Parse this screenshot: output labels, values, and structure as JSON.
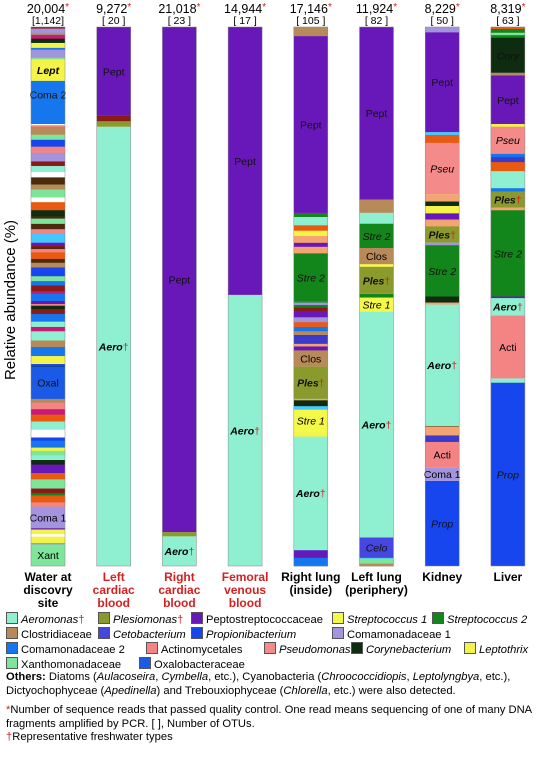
{
  "chart_data": {
    "type": "stacked-bar",
    "ylabel": "Relative abundance (%)",
    "ylim": [
      0,
      100
    ],
    "columns": [
      {
        "reads": "20,004",
        "otus": "[1,142]",
        "label": [
          "Water at",
          "discovry",
          "site"
        ],
        "label_color": "#000000"
      },
      {
        "reads": "9,272",
        "otus": "[ 20 ]",
        "label": [
          "Left",
          "cardiac",
          "blood"
        ],
        "label_color": "#d42020"
      },
      {
        "reads": "21,018",
        "otus": "[ 23 ]",
        "label": [
          "Right",
          "cardiac",
          "blood"
        ],
        "label_color": "#d42020"
      },
      {
        "reads": "14,944",
        "otus": "[ 17 ]",
        "label": [
          "Femoral",
          "venous",
          "blood"
        ],
        "label_color": "#d42020"
      },
      {
        "reads": "17,146",
        "otus": "[ 105 ]",
        "label": [
          "Right lung",
          "(inside)"
        ],
        "label_color": "#000000"
      },
      {
        "reads": "11,924",
        "otus": "[ 82 ]",
        "label": [
          "Left lung",
          "(periphery)"
        ],
        "label_color": "#000000"
      },
      {
        "reads": "8,229",
        "otus": "[ 50 ]",
        "label": [
          "Kidney"
        ],
        "label_color": "#000000"
      },
      {
        "reads": "8,319",
        "otus": "[ 63 ]",
        "label": [
          "Liver"
        ],
        "label_color": "#000000"
      }
    ],
    "segments": [
      [
        {
          "taxon": "Xanthomonadaceae",
          "from": 0,
          "to": 4,
          "label": "Xant",
          "style": "normal"
        },
        {
          "taxon": "Comamonadaceae 1",
          "from": 7,
          "to": 11,
          "label": "Coma 1",
          "style": "normal"
        },
        {
          "taxon": "Oxalobacteraceae",
          "from": 31,
          "to": 37,
          "label": "Oxal",
          "style": "normal"
        },
        {
          "taxon": "Comamonadaceae 2",
          "from": 82,
          "to": 93,
          "label": "Coma 2",
          "style": "normal"
        },
        {
          "taxon": "Leptothrix",
          "from": 90,
          "to": 94,
          "label": "Lept",
          "style": "italic-bold"
        }
      ],
      [
        {
          "taxon": "Aeromonas",
          "from": 0,
          "to": 81.5,
          "label": "Aero",
          "style": "aero"
        },
        {
          "taxon": "Plesiomonas",
          "from": 81.5,
          "to": 82.5,
          "label": "",
          "style": "normal"
        },
        {
          "taxon": "Other",
          "from": 82.5,
          "to": 83.5,
          "label": "",
          "style": "normal"
        },
        {
          "taxon": "Peptostreptococcaceae",
          "from": 83.5,
          "to": 100,
          "label": "Pept",
          "style": "normal"
        }
      ],
      [
        {
          "taxon": "Aeromonas",
          "from": 0,
          "to": 5.5,
          "label": "Aero",
          "style": "aero"
        },
        {
          "taxon": "Plesiomonas",
          "from": 5.5,
          "to": 6.3,
          "label": "",
          "style": "normal"
        },
        {
          "taxon": "Peptostreptococcaceae",
          "from": 6.3,
          "to": 100,
          "label": "Pept",
          "style": "normal"
        }
      ],
      [
        {
          "taxon": "Aeromonas",
          "from": 0,
          "to": 50.3,
          "label": "Aero",
          "style": "aero"
        },
        {
          "taxon": "Peptostreptococcaceae",
          "from": 50.3,
          "to": 100,
          "label": "Pept",
          "style": "normal"
        }
      ],
      [
        {
          "taxon": "Aeromonas",
          "from": 3,
          "to": 24,
          "label": "Aero",
          "style": "aero"
        },
        {
          "taxon": "Streptococcus 1",
          "from": 25,
          "to": 29,
          "label": "Stre 1",
          "style": "italic"
        },
        {
          "taxon": "Plesiomonas",
          "from": 31,
          "to": 37,
          "label": "Ples",
          "style": "ples"
        },
        {
          "taxon": "Clostridiaceae",
          "from": 37,
          "to": 40,
          "label": "Clos",
          "style": "normal"
        },
        {
          "taxon": "Streptococcus 2",
          "from": 49,
          "to": 58,
          "label": "Stre 2",
          "style": "italic"
        },
        {
          "taxon": "Peptostreptococcaceae",
          "from": 65.5,
          "to": 98.3,
          "label": "Pept",
          "style": "normal"
        }
      ],
      [
        {
          "taxon": "Cetobacterium",
          "from": 1.5,
          "to": 5.3,
          "label": "Celo",
          "style": "italic"
        },
        {
          "taxon": "Aeromonas",
          "from": 5.3,
          "to": 47.2,
          "label": "Aero",
          "style": "aero"
        },
        {
          "taxon": "Streptococcus 1",
          "from": 47.2,
          "to": 49.8,
          "label": "Stre 1",
          "style": "italic"
        },
        {
          "taxon": "Plesiomonas",
          "from": 50.5,
          "to": 55.5,
          "label": "Ples",
          "style": "ples"
        },
        {
          "taxon": "Clostridiaceae",
          "from": 56,
          "to": 59,
          "label": "Clos",
          "style": "normal"
        },
        {
          "taxon": "Streptococcus 2",
          "from": 59,
          "to": 63.5,
          "label": "Stre 2",
          "style": "italic"
        },
        {
          "taxon": "Peptostreptococcaceae",
          "from": 68,
          "to": 100,
          "label": "Pept",
          "style": "normal"
        }
      ],
      [
        {
          "taxon": "Propionibacterium",
          "from": 0,
          "to": 15.8,
          "label": "Prop",
          "style": "italic"
        },
        {
          "taxon": "Comamonadaceae 1",
          "from": 15.8,
          "to": 18.3,
          "label": "Coma 1",
          "style": "normal"
        },
        {
          "taxon": "Actinomycetales",
          "from": 18.3,
          "to": 23,
          "label": "Acti",
          "style": "normal"
        },
        {
          "taxon": "Aeromonas",
          "from": 26,
          "to": 48.5,
          "label": "Aero",
          "style": "aero"
        },
        {
          "taxon": "Streptococcus 2",
          "from": 50,
          "to": 59.5,
          "label": "Stre 2",
          "style": "italic"
        },
        {
          "taxon": "Plesiomonas",
          "from": 60,
          "to": 63,
          "label": "Ples",
          "style": "ples"
        },
        {
          "taxon": "Pseudomonas",
          "from": 69,
          "to": 78.5,
          "label": "Pseu",
          "style": "italic"
        },
        {
          "taxon": "Peptostreptococcaceae",
          "from": 80.5,
          "to": 99,
          "label": "Pept",
          "style": "normal"
        }
      ],
      [
        {
          "taxon": "Propionibacterium",
          "from": 0,
          "to": 34,
          "label": "Prop",
          "style": "italic"
        },
        {
          "taxon": "Actinomycetales",
          "from": 34.8,
          "to": 46.5,
          "label": "Acti",
          "style": "normal"
        },
        {
          "taxon": "Aeromonas",
          "from": 46.5,
          "to": 49.7,
          "label": "Aero",
          "style": "aero"
        },
        {
          "taxon": "Streptococcus 2",
          "from": 50,
          "to": 66,
          "label": "Stre 2",
          "style": "italic"
        },
        {
          "taxon": "Plesiomonas",
          "from": 66.5,
          "to": 69.5,
          "label": "Ples",
          "style": "ples"
        },
        {
          "taxon": "Pseudomonas",
          "from": 76.5,
          "to": 81.5,
          "label": "Pseu",
          "style": "italic"
        },
        {
          "taxon": "Peptostreptococcaceae",
          "from": 82,
          "to": 91,
          "label": "Pept",
          "style": "normal"
        },
        {
          "taxon": "Corynebacterium",
          "from": 91.5,
          "to": 98,
          "label": "Cory",
          "style": "italic"
        }
      ]
    ],
    "colors": {
      "Aeromonas": "#8ef0d0",
      "Plesiomonas": "#8a9a2c",
      "Peptostreptococcaceae": "#6818b8",
      "Streptococcus 1": "#f4f848",
      "Streptococcus 2": "#12861a",
      "Clostridiaceae": "#b88a5a",
      "Cetobacterium": "#4646e0",
      "Propionibacterium": "#1846ee",
      "Comamonadaceae 1": "#a494de",
      "Comamonadaceae 2": "#1676ee",
      "Actinomycetales": "#f48484",
      "Pseudomonas": "#f48a8a",
      "Corynebacterium": "#0e2c10",
      "Leptothrix": "#f4f448",
      "Xanthomonadaceae": "#7ee69a",
      "Oxalobacteraceae": "#1a5ae6",
      "Other": "#8a1a1a"
    }
  },
  "legend": [
    {
      "name": "Aeromonas",
      "mark": "†",
      "italic": true
    },
    {
      "name": "Plesiomonas",
      "mark": "†",
      "italic": true
    },
    {
      "name": "Peptostreptococcaceae",
      "mark": "",
      "italic": false
    },
    {
      "name": "Streptococcus 1",
      "mark": "",
      "italic": true
    },
    {
      "name": "Streptococcus 2",
      "mark": "",
      "italic": true
    },
    {
      "name": "Clostridiaceae",
      "mark": "",
      "italic": false
    },
    {
      "name": "Cetobacterium",
      "mark": "",
      "italic": true
    },
    {
      "name": "Propionibacterium",
      "mark": "",
      "italic": true
    },
    {
      "name": "Comamonadaceae 1",
      "mark": "",
      "italic": false
    },
    {
      "name": "Comamonadaceae 2",
      "mark": "",
      "italic": false
    },
    {
      "name": "Actinomycetales",
      "mark": "",
      "italic": false
    },
    {
      "name": "Pseudomonas",
      "mark": "",
      "italic": true
    },
    {
      "name": "Corynebacterium",
      "mark": "",
      "italic": true
    },
    {
      "name": "Leptothrix",
      "mark": "",
      "italic": true
    },
    {
      "name": "Xanthomonadaceae",
      "mark": "",
      "italic": false
    },
    {
      "name": "Oxalobacteraceae",
      "mark": "",
      "italic": false
    }
  ],
  "notes": {
    "others_title": "Others:",
    "others_1": " Diatoms (",
    "others_aulac": "Aulacoseira",
    "others_2": ", ",
    "others_cymb": "Cymbella",
    "others_3": ", etc.), Cyanobacteria (",
    "others_chroo": "Chroococcidiopis",
    "others_4": ", ",
    "others_lepto": "Leptolyngbya",
    "others_5": ", etc.), Dictyochophyceae (",
    "others_aped": "Apedinella",
    "others_6": ") and Trebouxiophyceae (",
    "others_chlor": "Chlorella",
    "others_7": ", etc.) were also detected.",
    "reads_mark": "*",
    "reads_note": "Number of sequence reads that passed quality control. One read means sequencing of one of many DNA fragments amplified by PCR. [ ], Number of OTUs.",
    "fresh_mark": "†",
    "fresh_note": "Representative freshwater types"
  }
}
